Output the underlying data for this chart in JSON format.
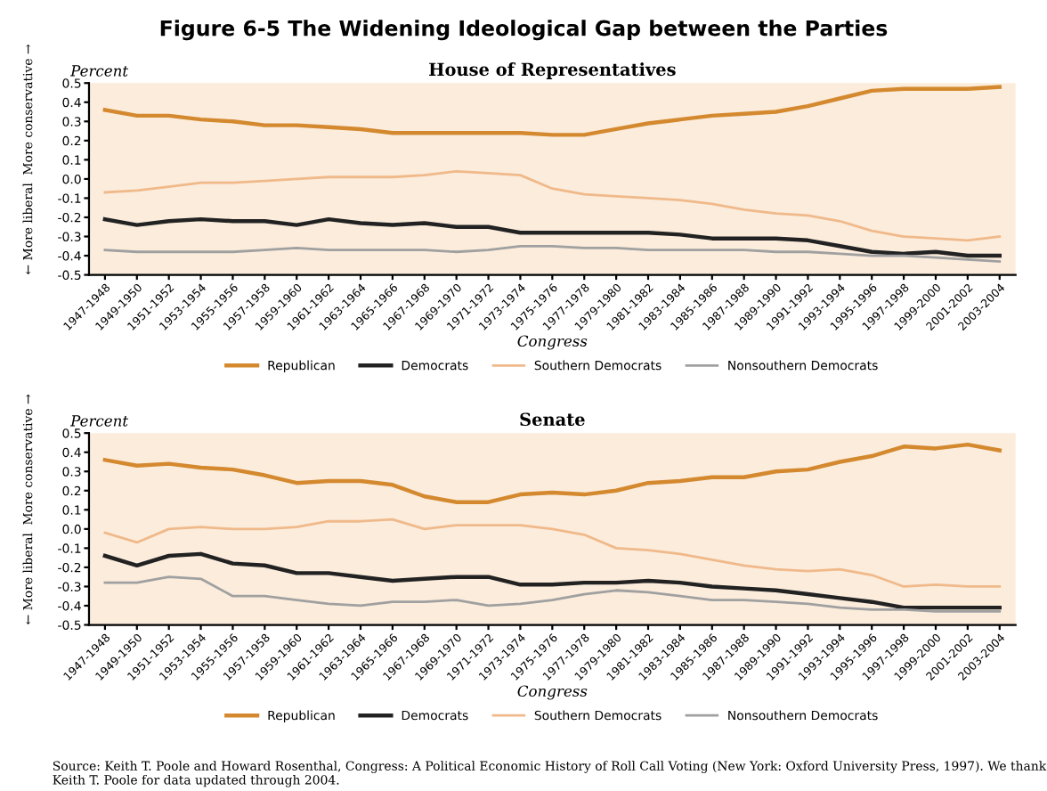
{
  "chart_data": [
    {
      "type": "line",
      "title": "Figure 6-5 The Widening Ideological Gap between the Parties",
      "subtitle": "House of Representatives",
      "ylabel": "Percent",
      "xlabel": "Congress",
      "annotations": [
        "More conservative →",
        "← More liberal"
      ],
      "categories": [
        "1947-1948",
        "1949-1950",
        "1951-1952",
        "1953-1954",
        "1955-1956",
        "1957-1958",
        "1959-1960",
        "1961-1962",
        "1963-1964",
        "1965-1966",
        "1967-1968",
        "1969-1970",
        "1971-1972",
        "1973-1974",
        "1975-1976",
        "1977-1978",
        "1979-1980",
        "1981-1982",
        "1983-1984",
        "1985-1986",
        "1987-1988",
        "1989-1990",
        "1991-1992",
        "1993-1994",
        "1995-1996",
        "1997-1998",
        "1999-2000",
        "2001-2002",
        "2003-2004"
      ],
      "series": [
        {
          "name": "Republican",
          "color": "#d4892f",
          "values": [
            0.36,
            0.33,
            0.33,
            0.31,
            0.3,
            0.28,
            0.28,
            0.27,
            0.26,
            0.24,
            0.24,
            0.24,
            0.24,
            0.24,
            0.23,
            0.23,
            0.26,
            0.29,
            0.31,
            0.33,
            0.34,
            0.35,
            0.38,
            0.42,
            0.46,
            0.47,
            0.47,
            0.47,
            0.48
          ]
        },
        {
          "name": "Democrats",
          "color": "#222222",
          "values": [
            -0.21,
            -0.24,
            -0.22,
            -0.21,
            -0.22,
            -0.22,
            -0.24,
            -0.21,
            -0.23,
            -0.24,
            -0.23,
            -0.25,
            -0.25,
            -0.28,
            -0.28,
            -0.28,
            -0.28,
            -0.28,
            -0.29,
            -0.31,
            -0.31,
            -0.31,
            -0.32,
            -0.35,
            -0.38,
            -0.39,
            -0.38,
            -0.4,
            -0.4
          ]
        },
        {
          "name": "Southern Democrats",
          "color": "#f0b98a",
          "values": [
            -0.07,
            -0.06,
            -0.04,
            -0.02,
            -0.02,
            -0.01,
            0.0,
            0.01,
            0.01,
            0.01,
            0.02,
            0.04,
            0.03,
            0.02,
            -0.05,
            -0.08,
            -0.09,
            -0.1,
            -0.11,
            -0.13,
            -0.16,
            -0.18,
            -0.19,
            -0.22,
            -0.27,
            -0.3,
            -0.31,
            -0.32,
            -0.3
          ]
        },
        {
          "name": "Nonsouthern Democrats",
          "color": "#a0a0a0",
          "values": [
            -0.37,
            -0.38,
            -0.38,
            -0.38,
            -0.38,
            -0.37,
            -0.36,
            -0.37,
            -0.37,
            -0.37,
            -0.37,
            -0.38,
            -0.37,
            -0.35,
            -0.35,
            -0.36,
            -0.36,
            -0.37,
            -0.37,
            -0.37,
            -0.37,
            -0.38,
            -0.38,
            -0.39,
            -0.4,
            -0.4,
            -0.41,
            -0.42,
            -0.43
          ]
        }
      ],
      "ylim": [
        -0.5,
        0.5
      ],
      "yticks": [
        -0.5,
        -0.4,
        -0.3,
        -0.2,
        -0.1,
        {
          "value": 0,
          "label": "0.0"
        },
        0.1,
        0.2,
        0.3,
        0.4,
        0.5
      ],
      "grid": false,
      "legend": "bottom",
      "marker": "none",
      "line_style": "solid"
    },
    {
      "type": "line",
      "subtitle": "Senate",
      "ylabel": "Percent",
      "xlabel": "Congress",
      "annotations": [
        "More conservative →",
        "← More liberal",
        "Source: Keith T. Poole and Howard Rosenthal, Congress: A Political Economic History of Roll Call Voting (New York: Oxford University Press, 1997). We thank Keith T. Poole for data updated through 2004."
      ],
      "categories": [
        "1947-1948",
        "1949-1950",
        "1951-1952",
        "1953-1954",
        "1955-1956",
        "1957-1958",
        "1959-1960",
        "1961-1962",
        "1963-1964",
        "1965-1966",
        "1967-1968",
        "1969-1970",
        "1971-1972",
        "1973-1974",
        "1975-1976",
        "1977-1978",
        "1979-1980",
        "1981-1982",
        "1983-1984",
        "1985-1986",
        "1987-1988",
        "1989-1990",
        "1991-1992",
        "1993-1994",
        "1995-1996",
        "1997-1998",
        "1999-2000",
        "2001-2002",
        "2003-2004"
      ],
      "series": [
        {
          "name": "Republican",
          "color": "#d4892f",
          "values": [
            0.36,
            0.33,
            0.34,
            0.32,
            0.31,
            0.28,
            0.24,
            0.25,
            0.25,
            0.23,
            0.17,
            0.14,
            0.14,
            0.18,
            0.19,
            0.18,
            0.2,
            0.24,
            0.25,
            0.27,
            0.27,
            0.3,
            0.31,
            0.35,
            0.38,
            0.43,
            0.42,
            0.44,
            0.41
          ]
        },
        {
          "name": "Democrats",
          "color": "#222222",
          "values": [
            -0.14,
            -0.19,
            -0.14,
            -0.13,
            -0.18,
            -0.19,
            -0.23,
            -0.23,
            -0.25,
            -0.27,
            -0.26,
            -0.25,
            -0.25,
            -0.29,
            -0.29,
            -0.28,
            -0.28,
            -0.27,
            -0.28,
            -0.3,
            -0.31,
            -0.32,
            -0.34,
            -0.36,
            -0.38,
            -0.41,
            -0.41,
            -0.41,
            -0.41
          ]
        },
        {
          "name": "Southern Democrats",
          "color": "#f0b98a",
          "values": [
            -0.02,
            -0.07,
            0.0,
            0.01,
            0.0,
            0.0,
            0.01,
            0.04,
            0.04,
            0.05,
            0.0,
            0.02,
            0.02,
            0.02,
            0.0,
            -0.03,
            -0.1,
            -0.11,
            -0.13,
            -0.16,
            -0.19,
            -0.21,
            -0.22,
            -0.21,
            -0.24,
            -0.3,
            -0.29,
            -0.3,
            -0.3
          ]
        },
        {
          "name": "Nonsouthern Democrats",
          "color": "#a0a0a0",
          "values": [
            -0.28,
            -0.28,
            -0.25,
            -0.26,
            -0.35,
            -0.35,
            -0.37,
            -0.39,
            -0.4,
            -0.38,
            -0.38,
            -0.37,
            -0.4,
            -0.39,
            -0.37,
            -0.34,
            -0.32,
            -0.33,
            -0.35,
            -0.37,
            -0.37,
            -0.38,
            -0.39,
            -0.41,
            -0.42,
            -0.42,
            -0.43,
            -0.43,
            -0.43
          ]
        }
      ],
      "ylim": [
        -0.5,
        0.5
      ],
      "yticks": [
        -0.5,
        -0.4,
        -0.3,
        -0.2,
        -0.1,
        {
          "value": 0,
          "label": "0.0"
        },
        0.1,
        0.2,
        0.3,
        0.4,
        0.5
      ],
      "grid": false,
      "legend": "bottom",
      "marker": "none",
      "line_style": "solid"
    }
  ]
}
